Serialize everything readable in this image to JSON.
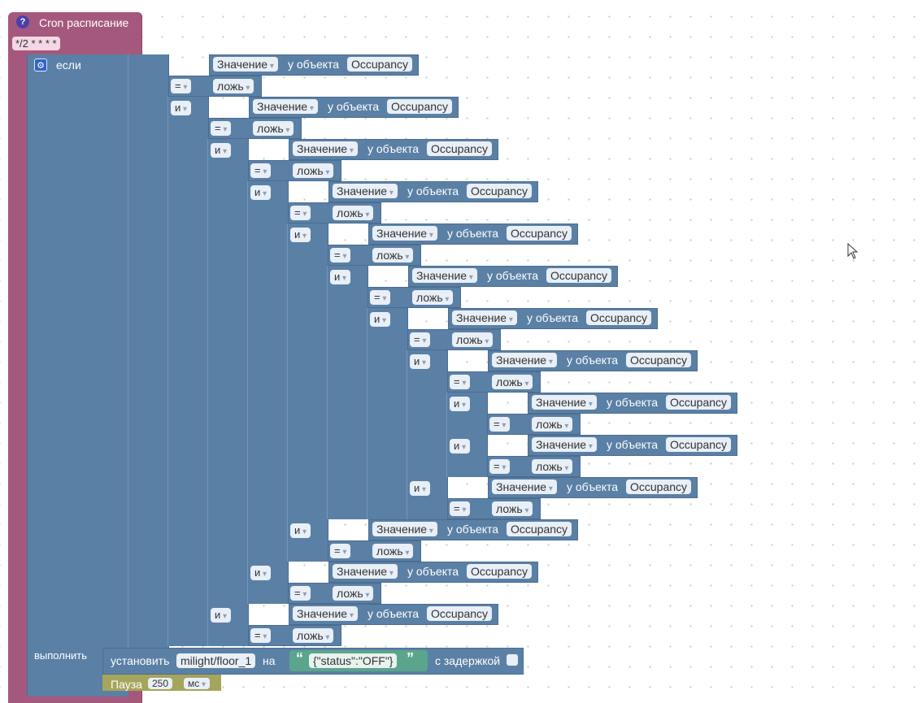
{
  "cron": {
    "title": "Cron расписание",
    "field": "*/2 * * * *",
    "help_icon": "?"
  },
  "if_block": {
    "if_label": "если",
    "do_label": "выполнить"
  },
  "labels": {
    "value": "Значение",
    "of_object": "у объекта",
    "object": "Occupancy",
    "op_eq": "=",
    "false": "ложь",
    "and": "и"
  },
  "action": {
    "set_label": "установить",
    "target": "milight/floor_1",
    "to_label": "на",
    "payload": "{\"status\":\"OFF\"}",
    "delay_label": "с задержкой"
  },
  "pause": {
    "label": "Пауза",
    "value": "250",
    "unit": "мс"
  },
  "conditions": [
    {
      "level": 0
    },
    {
      "level": 1
    },
    {
      "level": 2
    },
    {
      "level": 3
    },
    {
      "level": 4
    },
    {
      "level": 5
    },
    {
      "level": 6
    },
    {
      "level": 7
    },
    {
      "level": 8
    },
    {
      "level": 8
    },
    {
      "level": 7
    },
    {
      "level": 4
    },
    {
      "level": 3
    },
    {
      "level": 2
    }
  ]
}
